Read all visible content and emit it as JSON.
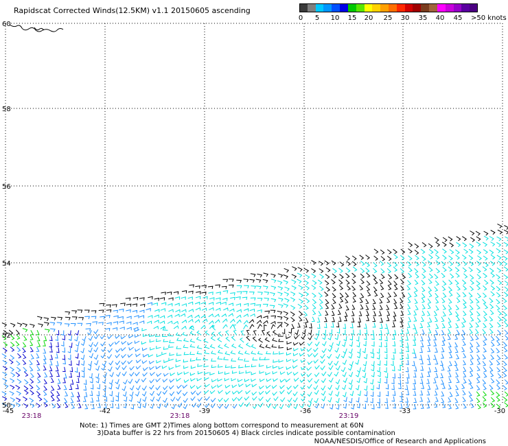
{
  "title": "Rapidscat Corrected Winds(12.5KM) v1.1 20150605 ascending",
  "colorbar": {
    "colors": [
      "#3a3a3a",
      "#7f7f7f",
      "#00c8ff",
      "#0096ff",
      "#0050ff",
      "#0000e6",
      "#00c800",
      "#5ae600",
      "#ffff00",
      "#ffd200",
      "#ffa000",
      "#ff6e00",
      "#ff2800",
      "#d20000",
      "#a00000",
      "#7a3c1e",
      "#a0643c",
      "#ff00ff",
      "#c800dc",
      "#9600c8",
      "#5a00a0",
      "#4b0082"
    ],
    "tick_labels": [
      "0",
      "5",
      "10",
      "15",
      "20",
      "25",
      "30",
      "35",
      "40",
      "45",
      ">50 knots"
    ]
  },
  "map": {
    "lon_ticks": [
      "-45",
      "-42",
      "-39",
      "-36",
      "-33",
      "-30"
    ],
    "lat_ticks": [
      "60",
      "58",
      "56",
      "54",
      "52",
      "50"
    ],
    "time_labels": [
      "23:18",
      "23:18",
      "23:19"
    ],
    "vector_colors": [
      "#000000",
      "#00e0e0",
      "#1e8fff",
      "#0000cd",
      "#00d800"
    ]
  },
  "notes": {
    "line1": "Note: 1) Times are GMT 2)Times along bottom correspond to measurement at 60N",
    "line2": "3)Data buffer is 22 hrs from 20150605 4) Black circles indicate possible contamination"
  },
  "credit": "NOAA/NESDIS/Office of Research and Applications"
}
